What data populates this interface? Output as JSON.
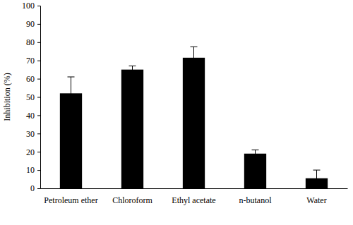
{
  "chart_data": {
    "type": "bar",
    "y_label": "Inhibition (%)",
    "categories": [
      "Petroleum ether",
      "Chloroform",
      "Ethyl acetate",
      "n-butanol",
      "Water"
    ],
    "values": [
      52,
      65,
      71.5,
      19,
      5.5
    ],
    "errors": [
      9,
      2,
      6,
      2,
      4.5
    ],
    "color": "#000000",
    "ylim": [
      0,
      100
    ],
    "yticks": [
      0,
      10,
      20,
      30,
      40,
      50,
      60,
      70,
      80,
      90,
      100
    ],
    "grid": false
  }
}
